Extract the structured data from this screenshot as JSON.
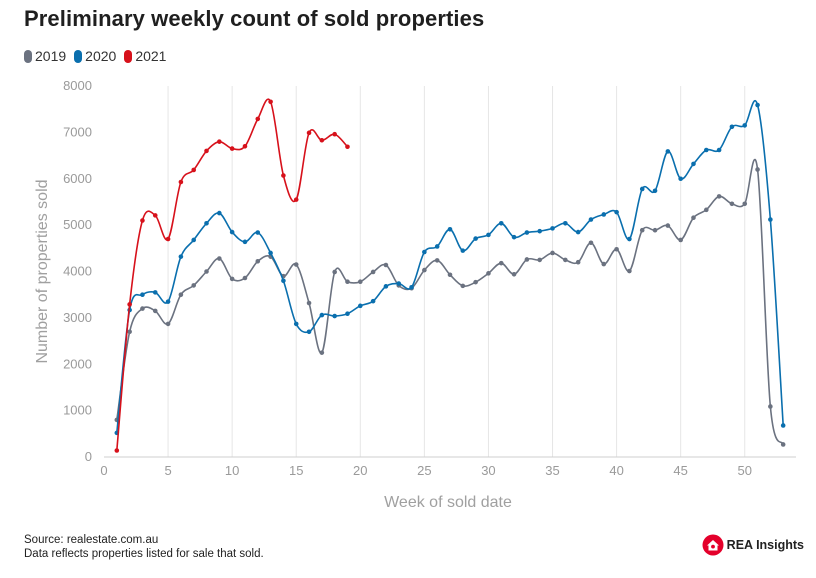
{
  "title": "Preliminary weekly count of sold properties",
  "footer": {
    "source": "Source: realestate.com.au",
    "note": "Data reflects properties listed for sale that sold."
  },
  "brand": {
    "label": "REA Insights",
    "icon": "rea-house-icon",
    "color": "#e4002b"
  },
  "chart_data": {
    "type": "line",
    "title": "Preliminary weekly count of sold properties",
    "xlabel": "Week of sold date",
    "ylabel": "Number of properties sold",
    "xlim": [
      0,
      54
    ],
    "ylim": [
      0,
      8000
    ],
    "xticks": [
      0,
      5,
      10,
      15,
      20,
      25,
      30,
      35,
      40,
      45,
      50
    ],
    "yticks": [
      0,
      1000,
      2000,
      3000,
      4000,
      5000,
      6000,
      7000,
      8000
    ],
    "grid": "vertical",
    "legend_position": "top-left",
    "series": [
      {
        "name": "2019",
        "color": "#6b7280",
        "x": [
          1,
          2,
          3,
          4,
          5,
          6,
          7,
          8,
          9,
          10,
          11,
          12,
          13,
          14,
          15,
          16,
          17,
          18,
          19,
          20,
          21,
          22,
          23,
          24,
          25,
          26,
          27,
          28,
          29,
          30,
          31,
          32,
          33,
          34,
          35,
          36,
          37,
          38,
          39,
          40,
          41,
          42,
          43,
          44,
          45,
          46,
          47,
          48,
          49,
          50,
          51,
          52,
          53
        ],
        "values": [
          800,
          2700,
          3200,
          3150,
          2870,
          3500,
          3700,
          4000,
          4280,
          3840,
          3860,
          4220,
          4320,
          3900,
          4150,
          3320,
          2250,
          3990,
          3780,
          3780,
          3990,
          4140,
          3700,
          3640,
          4030,
          4240,
          3930,
          3690,
          3770,
          3960,
          4180,
          3940,
          4260,
          4250,
          4400,
          4250,
          4200,
          4620,
          4160,
          4480,
          4010,
          4890,
          4890,
          4990,
          4680,
          5160,
          5330,
          5620,
          5460,
          5460,
          6200,
          1090,
          270
        ]
      },
      {
        "name": "2020",
        "color": "#0a6fae",
        "x": [
          1,
          2,
          3,
          4,
          5,
          6,
          7,
          8,
          9,
          10,
          11,
          12,
          13,
          14,
          15,
          16,
          17,
          18,
          19,
          20,
          21,
          22,
          23,
          24,
          25,
          26,
          27,
          28,
          29,
          30,
          31,
          32,
          33,
          34,
          35,
          36,
          37,
          38,
          39,
          40,
          41,
          42,
          43,
          44,
          45,
          46,
          47,
          48,
          49,
          50,
          51,
          52,
          53
        ],
        "values": [
          520,
          3170,
          3500,
          3550,
          3350,
          4320,
          4680,
          5040,
          5260,
          4850,
          4640,
          4840,
          4400,
          3800,
          2870,
          2700,
          3060,
          3040,
          3090,
          3260,
          3360,
          3680,
          3740,
          3660,
          4420,
          4540,
          4910,
          4450,
          4710,
          4790,
          5040,
          4740,
          4840,
          4870,
          4930,
          5040,
          4850,
          5120,
          5230,
          5280,
          4700,
          5780,
          5740,
          6590,
          6000,
          6320,
          6620,
          6620,
          7120,
          7150,
          7590,
          5120,
          680
        ]
      },
      {
        "name": "2021",
        "color": "#d7111b",
        "x": [
          1,
          2,
          3,
          4,
          5,
          6,
          7,
          8,
          9,
          10,
          11,
          12,
          13,
          14,
          15,
          16,
          17,
          18,
          19
        ],
        "values": [
          140,
          3290,
          5100,
          5210,
          4700,
          5930,
          6190,
          6600,
          6800,
          6650,
          6700,
          7290,
          7660,
          6070,
          5550,
          6990,
          6830,
          6960,
          6690
        ]
      }
    ]
  }
}
